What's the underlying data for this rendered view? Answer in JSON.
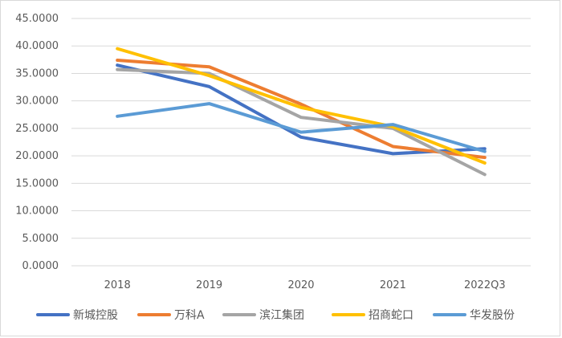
{
  "chart_data": {
    "type": "line",
    "title": "",
    "xlabel": "",
    "ylabel": "",
    "categories": [
      "2018",
      "2019",
      "2020",
      "2021",
      "2022Q3"
    ],
    "ylim": [
      0,
      45
    ],
    "yticks": [
      "0.0000",
      "5.0000",
      "10.0000",
      "15.0000",
      "20.0000",
      "25.0000",
      "30.0000",
      "35.0000",
      "40.0000",
      "45.0000"
    ],
    "grid": true,
    "legend_position": "bottom",
    "series": [
      {
        "name": "新城控股",
        "color": "#4472C4",
        "values": [
          36.5,
          32.6,
          23.4,
          20.4,
          21.3
        ]
      },
      {
        "name": "万科A",
        "color": "#ED7D31",
        "values": [
          37.4,
          36.2,
          29.4,
          21.7,
          19.7
        ]
      },
      {
        "name": "滨江集团",
        "color": "#A5A5A5",
        "values": [
          35.7,
          35.0,
          27.0,
          25.0,
          16.6
        ]
      },
      {
        "name": "招商蛇口",
        "color": "#FFC000",
        "values": [
          39.5,
          34.6,
          28.8,
          25.3,
          18.7
        ]
      },
      {
        "name": "华发股份",
        "color": "#5B9BD5",
        "values": [
          27.2,
          29.5,
          24.3,
          25.7,
          20.8
        ]
      }
    ]
  }
}
